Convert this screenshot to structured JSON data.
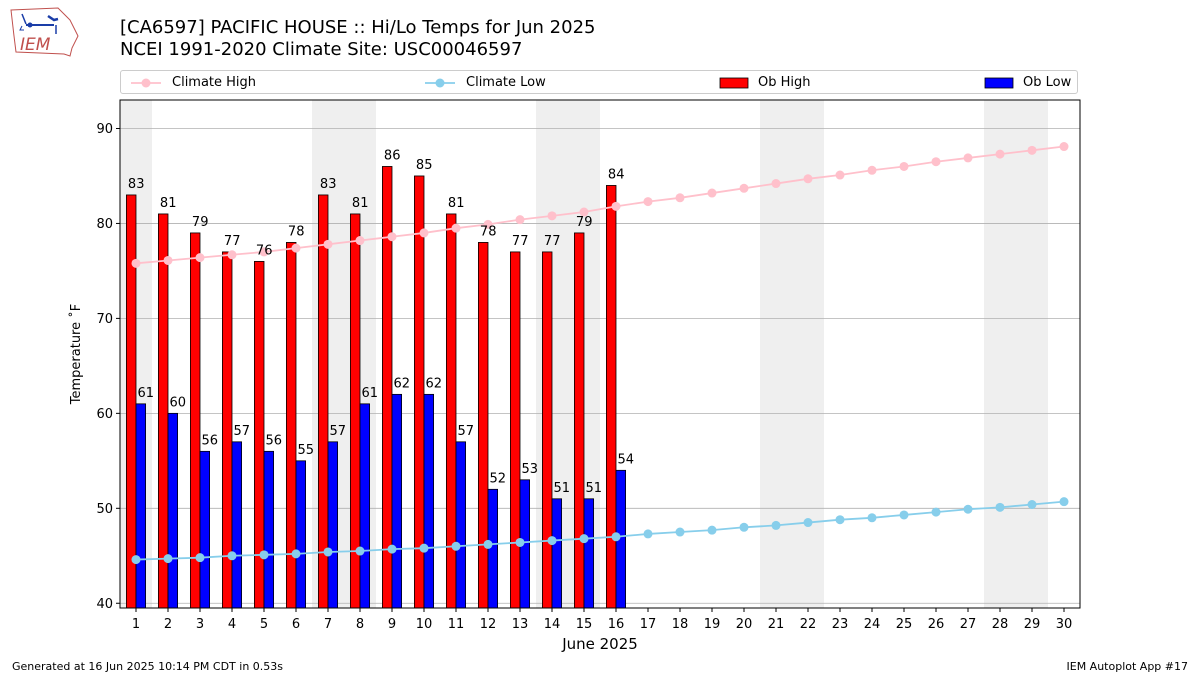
{
  "header": {
    "title": "[CA6597] PACIFIC HOUSE :: Hi/Lo Temps for Jun 2025",
    "subtitle": "NCEI 1991-2020 Climate Site: USC00046597",
    "logo_text": "IEM"
  },
  "footer": {
    "generated": "Generated at 16 Jun 2025 10:14 PM CDT in 0.53s",
    "app": "IEM Autoplot App #17"
  },
  "chart_data": {
    "type": "bar",
    "title": "[CA6597] PACIFIC HOUSE :: Hi/Lo Temps for Jun 2025",
    "xlabel": "June 2025",
    "ylabel": "Temperature ˚F",
    "xlim": [
      0.5,
      30.5
    ],
    "ylim": [
      39.5,
      93
    ],
    "yticks": [
      40,
      50,
      60,
      70,
      80,
      90
    ],
    "grid": "y",
    "legend_position": "top",
    "categories": [
      1,
      2,
      3,
      4,
      5,
      6,
      7,
      8,
      9,
      10,
      11,
      12,
      13,
      14,
      15,
      16,
      17,
      18,
      19,
      20,
      21,
      22,
      23,
      24,
      25,
      26,
      27,
      28,
      29,
      30
    ],
    "weekend_shading": [
      [
        1,
        1
      ],
      [
        7,
        8
      ],
      [
        14,
        15
      ],
      [
        21,
        22
      ],
      [
        28,
        29
      ]
    ],
    "series": [
      {
        "name": "Climate High",
        "kind": "line",
        "color": "#ffc0cb",
        "x": [
          1,
          2,
          3,
          4,
          5,
          6,
          7,
          8,
          9,
          10,
          11,
          12,
          13,
          14,
          15,
          16,
          17,
          18,
          19,
          20,
          21,
          22,
          23,
          24,
          25,
          26,
          27,
          28,
          29,
          30
        ],
        "values": [
          75.8,
          76.1,
          76.4,
          76.7,
          77.0,
          77.4,
          77.8,
          78.2,
          78.6,
          79.0,
          79.5,
          79.9,
          80.4,
          80.8,
          81.2,
          81.8,
          82.3,
          82.7,
          83.2,
          83.7,
          84.2,
          84.7,
          85.1,
          85.6,
          86.0,
          86.5,
          86.9,
          87.3,
          87.7,
          88.1
        ]
      },
      {
        "name": "Climate Low",
        "kind": "line",
        "color": "#87ceeb",
        "x": [
          1,
          2,
          3,
          4,
          5,
          6,
          7,
          8,
          9,
          10,
          11,
          12,
          13,
          14,
          15,
          16,
          17,
          18,
          19,
          20,
          21,
          22,
          23,
          24,
          25,
          26,
          27,
          28,
          29,
          30
        ],
        "values": [
          44.6,
          44.7,
          44.8,
          45.0,
          45.1,
          45.2,
          45.4,
          45.5,
          45.7,
          45.8,
          46.0,
          46.2,
          46.4,
          46.6,
          46.8,
          47.0,
          47.3,
          47.5,
          47.7,
          48.0,
          48.2,
          48.5,
          48.8,
          49.0,
          49.3,
          49.6,
          49.9,
          50.1,
          50.4,
          50.7
        ]
      },
      {
        "name": "Ob High",
        "kind": "bar",
        "color": "#ff0000",
        "x": [
          1,
          2,
          3,
          4,
          5,
          6,
          7,
          8,
          9,
          10,
          11,
          12,
          13,
          14,
          15,
          16
        ],
        "values": [
          83,
          81,
          79,
          77,
          76,
          78,
          83,
          81,
          86,
          85,
          81,
          78,
          77,
          77,
          79,
          84
        ]
      },
      {
        "name": "Ob Low",
        "kind": "bar",
        "color": "#0000ff",
        "x": [
          1,
          2,
          3,
          4,
          5,
          6,
          7,
          8,
          9,
          10,
          11,
          12,
          13,
          14,
          15,
          16
        ],
        "values": [
          61,
          60,
          56,
          57,
          56,
          55,
          57,
          61,
          62,
          62,
          57,
          52,
          53,
          51,
          51,
          54
        ]
      }
    ]
  }
}
